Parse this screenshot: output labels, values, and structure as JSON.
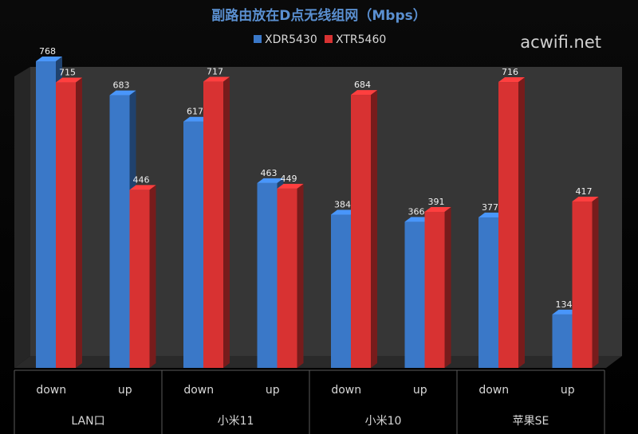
{
  "watermark": "acwifi.net",
  "chart_data": {
    "type": "bar",
    "title": "副路由放在D点无线组网（Mbps）",
    "groups": [
      "LAN口",
      "小米11",
      "小米10",
      "苹果SE"
    ],
    "subcategories": [
      "down",
      "up"
    ],
    "categories": [
      "down",
      "up",
      "down",
      "up",
      "down",
      "up",
      "down",
      "up"
    ],
    "series": [
      {
        "name": "XDR5430",
        "values": [
          768,
          683,
          617,
          463,
          384,
          366,
          377,
          134
        ]
      },
      {
        "name": "XTR5460",
        "values": [
          715,
          446,
          717,
          449,
          684,
          391,
          716,
          417
        ]
      }
    ],
    "colors": {
      "XDR5430": "#3a78c8",
      "XTR5460": "#d83232"
    },
    "ylim": [
      0,
      800
    ],
    "grid": false,
    "legend": "top-center"
  }
}
